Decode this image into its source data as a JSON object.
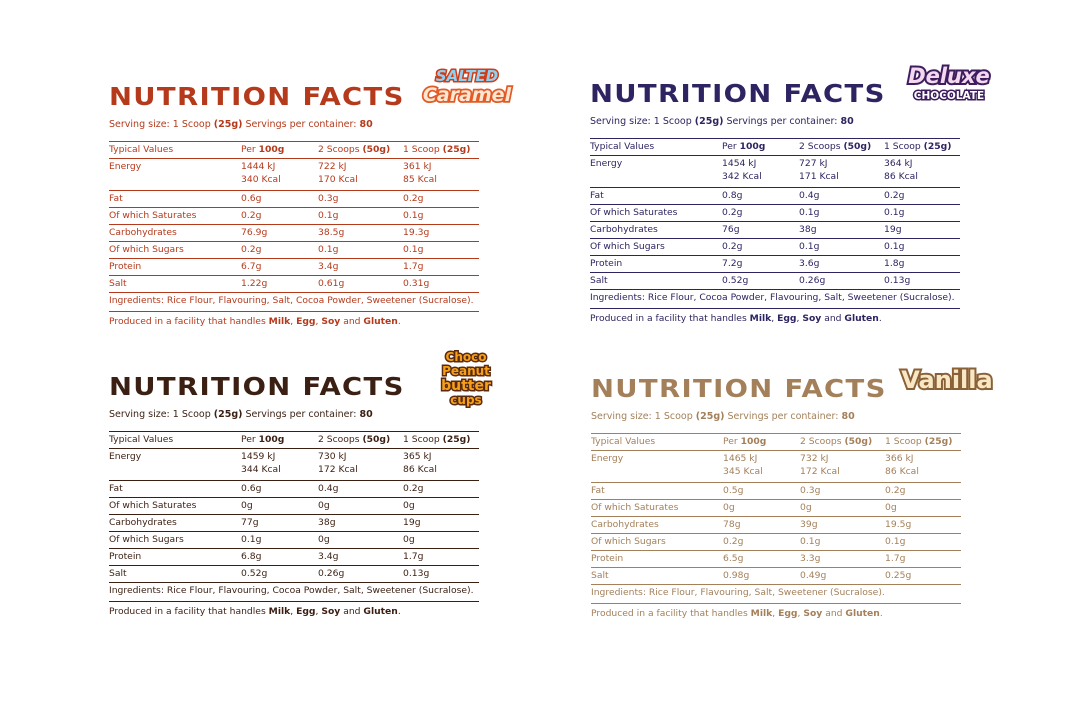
{
  "title": "NUTRITION FACTS",
  "serving_label": "Serving size: 1 Scoop",
  "serving_amount": "(25g)",
  "containers_label": "Servings per container:",
  "containers_value": "80",
  "headers": {
    "typical": "Typical Values",
    "per": "Per ",
    "per_b": "100g",
    "two": "2 Scoops ",
    "two_b": "(50g)",
    "one": "1 Scoop ",
    "one_b": "(25g)"
  },
  "row_labels": {
    "energy": "Energy",
    "fat": "Fat",
    "sat": "Of which Saturates",
    "carb": "Carbohydrates",
    "sug": "Of which Sugars",
    "prot": "Protein",
    "salt": "Salt"
  },
  "facility": {
    "lead": "Produced in a facility that handles ",
    "milk": "Milk",
    "c1": ", ",
    "egg": "Egg",
    "c2": ", ",
    "soy": "Soy",
    "and": " and ",
    "gluten": "Gluten",
    "end": "."
  },
  "products": [
    {
      "name": "salted-caramel",
      "logo": [
        "SALTED",
        "Caramel"
      ],
      "color": "#b53a1c",
      "energy": [
        [
          "1444 kJ",
          "340 Kcal"
        ],
        [
          "722 kJ",
          "170 Kcal"
        ],
        [
          "361 kJ",
          "85 Kcal"
        ]
      ],
      "fat": [
        "0.6g",
        "0.3g",
        "0.2g"
      ],
      "sat": [
        "0.2g",
        "0.1g",
        "0.1g"
      ],
      "carb": [
        "76.9g",
        "38.5g",
        "19.3g"
      ],
      "sug": [
        "0.2g",
        "0.1g",
        "0.1g"
      ],
      "prot": [
        "6.7g",
        "3.4g",
        "1.7g"
      ],
      "salt": [
        "1.22g",
        "0.61g",
        "0.31g"
      ],
      "ingredients": "Ingredients: Rice Flour, Flavouring, Salt, Cocoa Powder, Sweetener (Sucralose)."
    },
    {
      "name": "deluxe-chocolate",
      "logo": [
        "Deluxe",
        "CHOCOLATE"
      ],
      "color": "#2e2461",
      "energy": [
        [
          "1454 kJ",
          "342 Kcal"
        ],
        [
          "727 kJ",
          "171 Kcal"
        ],
        [
          "364 kJ",
          "86 Kcal"
        ]
      ],
      "fat": [
        "0.8g",
        "0.4g",
        "0.2g"
      ],
      "sat": [
        "0.2g",
        "0.1g",
        "0.1g"
      ],
      "carb": [
        "76g",
        "38g",
        "19g"
      ],
      "sug": [
        "0.2g",
        "0.1g",
        "0.1g"
      ],
      "prot": [
        "7.2g",
        "3.6g",
        "1.8g"
      ],
      "salt": [
        "0.52g",
        "0.26g",
        "0.13g"
      ],
      "ingredients": "Ingredients: Rice Flour, Cocoa Powder, Flavouring, Salt, Sweetener (Sucralose)."
    },
    {
      "name": "choco-peanut-butter-cups",
      "logo": [
        "Choco",
        "Peanut",
        "butter",
        "cups"
      ],
      "color": "#3b1f12",
      "energy": [
        [
          "1459 kJ",
          "344 Kcal"
        ],
        [
          "730 kJ",
          "172 Kcal"
        ],
        [
          "365 kJ",
          "86 Kcal"
        ]
      ],
      "fat": [
        "0.6g",
        "0.4g",
        "0.2g"
      ],
      "sat": [
        "0g",
        "0g",
        "0g"
      ],
      "carb": [
        "77g",
        "38g",
        "19g"
      ],
      "sug": [
        "0.1g",
        "0g",
        "0g"
      ],
      "prot": [
        "6.8g",
        "3.4g",
        "1.7g"
      ],
      "salt": [
        "0.52g",
        "0.26g",
        "0.13g"
      ],
      "ingredients": "Ingredients: Rice Flour, Flavouring, Cocoa Powder, Salt, Sweetener (Sucralose)."
    },
    {
      "name": "vanilla",
      "logo": [
        "Vanilla"
      ],
      "color": "#a4805a",
      "energy": [
        [
          "1465 kJ",
          "345 Kcal"
        ],
        [
          "732 kJ",
          "172 Kcal"
        ],
        [
          "366 kJ",
          "86 Kcal"
        ]
      ],
      "fat": [
        "0.5g",
        "0.3g",
        "0.2g"
      ],
      "sat": [
        "0g",
        "0g",
        "0g"
      ],
      "carb": [
        "78g",
        "39g",
        "19.5g"
      ],
      "sug": [
        "0.2g",
        "0.1g",
        "0.1g"
      ],
      "prot": [
        "6.5g",
        "3.3g",
        "1.7g"
      ],
      "salt": [
        "0.98g",
        "0.49g",
        "0.25g"
      ],
      "ingredients": "Ingredients: Rice Flour, Flavouring, Salt, Sweetener (Sucralose)."
    }
  ]
}
